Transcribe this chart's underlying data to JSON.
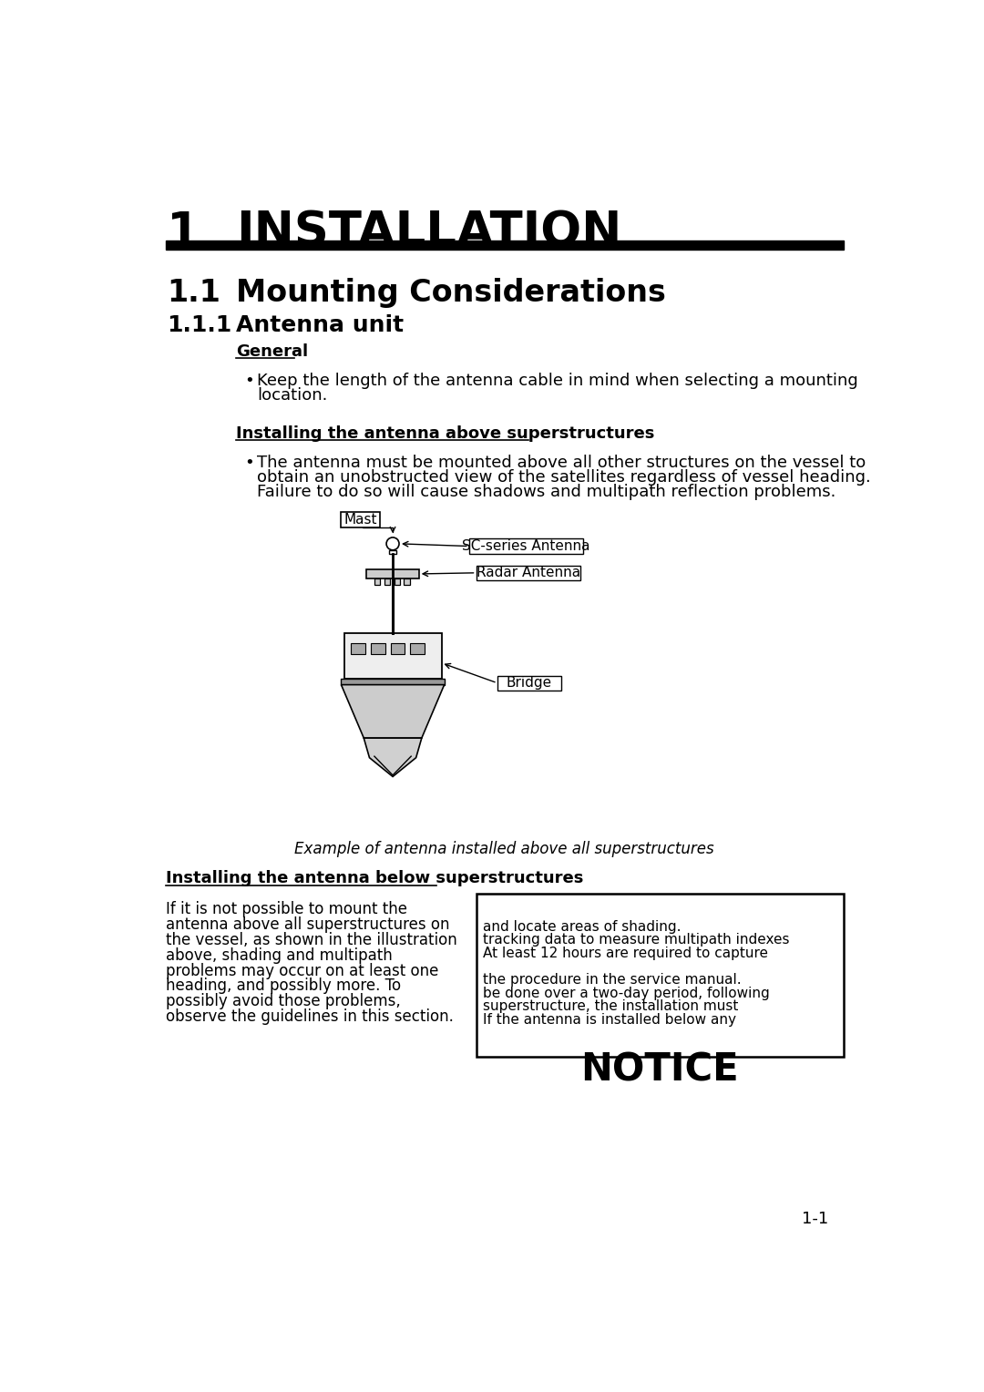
{
  "bg_color": "#ffffff",
  "chapter_num": "1",
  "chapter_title": "INSTALLATION",
  "section_num": "1.1",
  "section_title": "Mounting Considerations",
  "subsection_num": "1.1.1",
  "subsection_title": "Antenna unit",
  "general_heading": "General",
  "bullet1_line1": "Keep the length of the antenna cable in mind when selecting a mounting",
  "bullet1_line2": "location.",
  "above_heading": "Installing the antenna above superstructures",
  "bullet2_line1": "The antenna must be mounted above all other structures on the vessel to",
  "bullet2_line2": "obtain an unobstructed view of the satellites regardless of vessel heading.",
  "bullet2_line3": "Failure to do so will cause shadows and multipath reflection problems.",
  "fig_caption": "Example of antenna installed above all superstructures",
  "label_mast": "Mast",
  "label_sc": "SC-series Antenna",
  "label_radar": "Radar Antenna",
  "label_bridge": "Bridge",
  "below_heading": "Installing the antenna below superstructures",
  "below_line1": "If it is not possible to mount the",
  "below_line2": "antenna above all superstructures on",
  "below_line3": "the vessel, as shown in the illustration",
  "below_line4": "above, shading and multipath",
  "below_line5": "problems may occur on at least one",
  "below_line6": "heading, and possibly more. To",
  "below_line7": "possibly avoid those problems,",
  "below_line8": "observe the guidelines in this section.",
  "notice_title": "NOTICE",
  "notice_line1": "If the antenna is installed below any",
  "notice_line2": "superstructure, the installation must",
  "notice_line3": "be done over a two-day period, following",
  "notice_line4": "the procedure in the service manual.",
  "notice_line6": "At least 12 hours are required to capture",
  "notice_line7": "tracking data to measure multipath indexes",
  "notice_line8": "and locate areas of shading.",
  "page_num": "1-1"
}
